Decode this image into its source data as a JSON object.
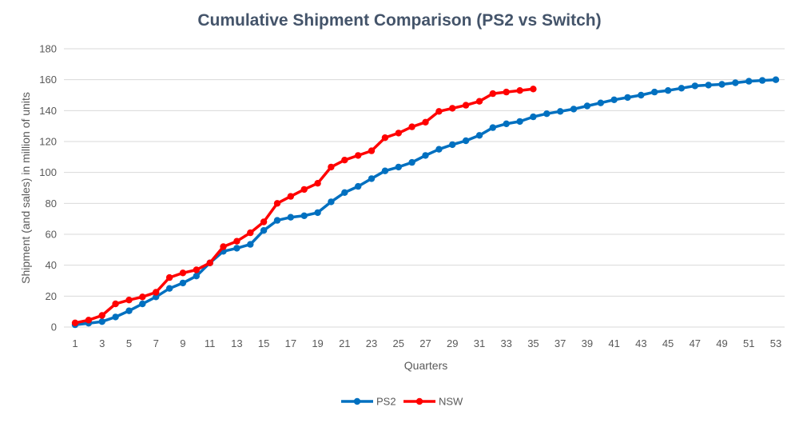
{
  "chart_data": {
    "type": "line",
    "title": "Cumulative Shipment Comparison (PS2 vs Switch)",
    "xlabel": "Quarters",
    "ylabel": "Shipment (and sales) in million of units",
    "ylim": [
      0,
      180
    ],
    "yticks": [
      0,
      20,
      40,
      60,
      80,
      100,
      120,
      140,
      160,
      180
    ],
    "xlim": [
      1,
      53
    ],
    "xticks": [
      1,
      3,
      5,
      7,
      9,
      11,
      13,
      15,
      17,
      19,
      21,
      23,
      25,
      27,
      29,
      31,
      33,
      35,
      37,
      39,
      41,
      43,
      45,
      47,
      49,
      51,
      53
    ],
    "grid": true,
    "legend_position": "bottom",
    "series": [
      {
        "name": "PS2",
        "color": "#0070c0",
        "x": [
          1,
          2,
          3,
          4,
          5,
          6,
          7,
          8,
          9,
          10,
          11,
          12,
          13,
          14,
          15,
          16,
          17,
          18,
          19,
          20,
          21,
          22,
          23,
          24,
          25,
          26,
          27,
          28,
          29,
          30,
          31,
          32,
          33,
          34,
          35,
          36,
          37,
          38,
          39,
          40,
          41,
          42,
          43,
          44,
          45,
          46,
          47,
          48,
          49,
          50,
          51,
          52,
          53
        ],
        "values": [
          1.5,
          2.5,
          3.5,
          6.5,
          10.5,
          15,
          19.5,
          25,
          28.5,
          33,
          41.5,
          49,
          51,
          53.5,
          62.5,
          69,
          71,
          72,
          74,
          81,
          87,
          91,
          96,
          101,
          103.5,
          106.5,
          111,
          115,
          118,
          120.5,
          124,
          129,
          131.5,
          133,
          136,
          138,
          139.5,
          141,
          143,
          145,
          147,
          148.5,
          150,
          152,
          153,
          154.5,
          156,
          156.5,
          157,
          158,
          159,
          159.5,
          160
        ]
      },
      {
        "name": "NSW",
        "color": "#ff0000",
        "x": [
          1,
          2,
          3,
          4,
          5,
          6,
          7,
          8,
          9,
          10,
          11,
          12,
          13,
          14,
          15,
          16,
          17,
          18,
          19,
          20,
          21,
          22,
          23,
          24,
          25,
          26,
          27,
          28,
          29,
          30,
          31,
          32,
          33,
          34,
          35
        ],
        "values": [
          2.7,
          4.5,
          7.5,
          15,
          17.5,
          19.5,
          22.5,
          32,
          35,
          37,
          41.5,
          52,
          55.5,
          61,
          68,
          80,
          84.5,
          89,
          93,
          103.5,
          108,
          111,
          114,
          122.5,
          125.5,
          129.5,
          132.5,
          139.5,
          141.5,
          143.5,
          146,
          151,
          152,
          153,
          154
        ]
      }
    ]
  }
}
